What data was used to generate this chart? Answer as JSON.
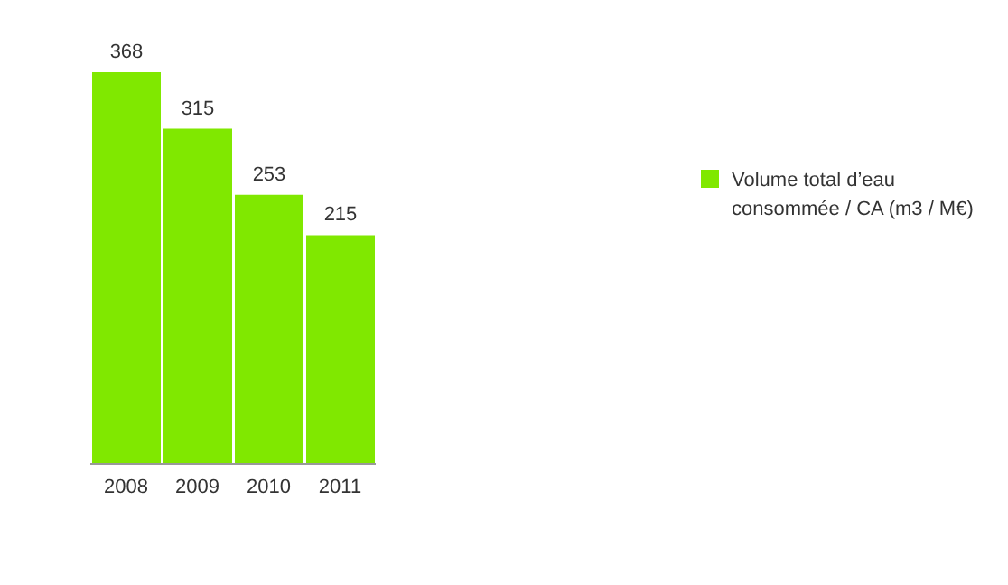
{
  "chart_data": {
    "type": "bar",
    "categories": [
      "2008",
      "2009",
      "2010",
      "2011"
    ],
    "series": [
      {
        "name": "Volume total d’eau consommée / CA (m3 / M€)",
        "color": "#80e800",
        "values": [
          368,
          315,
          253,
          215
        ]
      }
    ],
    "data_labels": true,
    "legend": "right",
    "grid": false
  }
}
